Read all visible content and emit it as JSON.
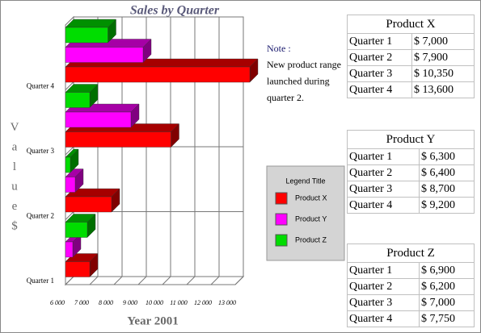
{
  "chart_data": {
    "type": "bar3d_horizontal",
    "title": "Sales by Quarter",
    "xlabel": "Year 2001",
    "ylabel": "Value $",
    "categories": [
      "Quarter 1",
      "Quarter 2",
      "Quarter 3",
      "Quarter 4"
    ],
    "series": [
      {
        "name": "Product X",
        "color": "#ff0000",
        "values": [
          7000,
          7900,
          10350,
          13600
        ]
      },
      {
        "name": "Product Y",
        "color": "#ff00ff",
        "values": [
          6300,
          6400,
          8700,
          9200
        ]
      },
      {
        "name": "Product Z",
        "color": "#00dd00",
        "values": [
          6900,
          6200,
          7000,
          7750
        ]
      }
    ],
    "xlim": [
      6000,
      13000
    ],
    "xticks": [
      {
        "value": 6000,
        "label": "6 000"
      },
      {
        "value": 7000,
        "label": "7 000"
      },
      {
        "value": 8000,
        "label": "8 000"
      },
      {
        "value": 9000,
        "label": "9 000"
      },
      {
        "value": 10000,
        "label": "10 000"
      },
      {
        "value": 11000,
        "label": "11 000"
      },
      {
        "value": 12000,
        "label": "12 000"
      },
      {
        "value": 13000,
        "label": "13 000"
      }
    ],
    "grid": true,
    "legend_title": "Legend Title"
  },
  "note": {
    "title": "Note :",
    "lines": [
      "New product range",
      "launched during",
      "quarter 2."
    ]
  },
  "tables": [
    {
      "title": "Product X",
      "rows": [
        [
          "Quarter 1",
          "$ 7,000"
        ],
        [
          "Quarter 2",
          "$ 7,900"
        ],
        [
          "Quarter 3",
          "$ 10,350"
        ],
        [
          "Quarter 4",
          "$ 13,600"
        ]
      ]
    },
    {
      "title": "Product Y",
      "rows": [
        [
          "Quarter 1",
          "$ 6,300"
        ],
        [
          "Quarter 2",
          "$ 6,400"
        ],
        [
          "Quarter 3",
          "$ 8,700"
        ],
        [
          "Quarter 4",
          "$ 9,200"
        ]
      ]
    },
    {
      "title": "Product Z",
      "rows": [
        [
          "Quarter 1",
          "$ 6,900"
        ],
        [
          "Quarter 2",
          "$ 6,200"
        ],
        [
          "Quarter 3",
          "$ 7,000"
        ],
        [
          "Quarter 4",
          "$ 7,750"
        ]
      ]
    }
  ]
}
